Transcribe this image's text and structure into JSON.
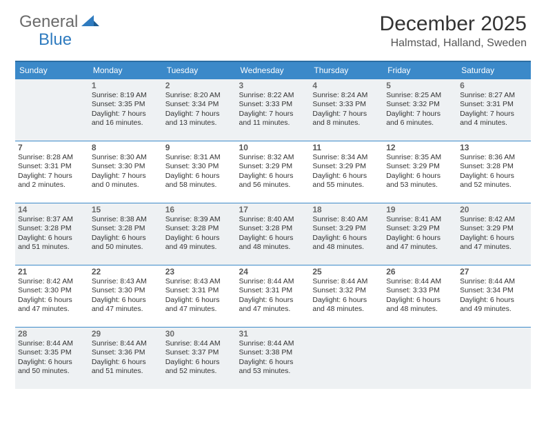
{
  "logo": {
    "part1": "General",
    "part2": "Blue"
  },
  "title": "December 2025",
  "location": "Halmstad, Halland, Sweden",
  "colors": {
    "header_bg": "#3b89c9",
    "header_border": "#2c6da3",
    "shaded_bg": "#eef1f3",
    "text": "#333333",
    "logo_gray": "#6a6a6a",
    "logo_blue": "#2f7bbf"
  },
  "weekdays": [
    "Sunday",
    "Monday",
    "Tuesday",
    "Wednesday",
    "Thursday",
    "Friday",
    "Saturday"
  ],
  "weeks": [
    [
      {
        "empty": true
      },
      {
        "day": "1",
        "sunrise": "Sunrise: 8:19 AM",
        "sunset": "Sunset: 3:35 PM",
        "daylight": "Daylight: 7 hours and 16 minutes."
      },
      {
        "day": "2",
        "sunrise": "Sunrise: 8:20 AM",
        "sunset": "Sunset: 3:34 PM",
        "daylight": "Daylight: 7 hours and 13 minutes."
      },
      {
        "day": "3",
        "sunrise": "Sunrise: 8:22 AM",
        "sunset": "Sunset: 3:33 PM",
        "daylight": "Daylight: 7 hours and 11 minutes."
      },
      {
        "day": "4",
        "sunrise": "Sunrise: 8:24 AM",
        "sunset": "Sunset: 3:33 PM",
        "daylight": "Daylight: 7 hours and 8 minutes."
      },
      {
        "day": "5",
        "sunrise": "Sunrise: 8:25 AM",
        "sunset": "Sunset: 3:32 PM",
        "daylight": "Daylight: 7 hours and 6 minutes."
      },
      {
        "day": "6",
        "sunrise": "Sunrise: 8:27 AM",
        "sunset": "Sunset: 3:31 PM",
        "daylight": "Daylight: 7 hours and 4 minutes."
      }
    ],
    [
      {
        "day": "7",
        "sunrise": "Sunrise: 8:28 AM",
        "sunset": "Sunset: 3:31 PM",
        "daylight": "Daylight: 7 hours and 2 minutes."
      },
      {
        "day": "8",
        "sunrise": "Sunrise: 8:30 AM",
        "sunset": "Sunset: 3:30 PM",
        "daylight": "Daylight: 7 hours and 0 minutes."
      },
      {
        "day": "9",
        "sunrise": "Sunrise: 8:31 AM",
        "sunset": "Sunset: 3:30 PM",
        "daylight": "Daylight: 6 hours and 58 minutes."
      },
      {
        "day": "10",
        "sunrise": "Sunrise: 8:32 AM",
        "sunset": "Sunset: 3:29 PM",
        "daylight": "Daylight: 6 hours and 56 minutes."
      },
      {
        "day": "11",
        "sunrise": "Sunrise: 8:34 AM",
        "sunset": "Sunset: 3:29 PM",
        "daylight": "Daylight: 6 hours and 55 minutes."
      },
      {
        "day": "12",
        "sunrise": "Sunrise: 8:35 AM",
        "sunset": "Sunset: 3:29 PM",
        "daylight": "Daylight: 6 hours and 53 minutes."
      },
      {
        "day": "13",
        "sunrise": "Sunrise: 8:36 AM",
        "sunset": "Sunset: 3:28 PM",
        "daylight": "Daylight: 6 hours and 52 minutes."
      }
    ],
    [
      {
        "day": "14",
        "sunrise": "Sunrise: 8:37 AM",
        "sunset": "Sunset: 3:28 PM",
        "daylight": "Daylight: 6 hours and 51 minutes."
      },
      {
        "day": "15",
        "sunrise": "Sunrise: 8:38 AM",
        "sunset": "Sunset: 3:28 PM",
        "daylight": "Daylight: 6 hours and 50 minutes."
      },
      {
        "day": "16",
        "sunrise": "Sunrise: 8:39 AM",
        "sunset": "Sunset: 3:28 PM",
        "daylight": "Daylight: 6 hours and 49 minutes."
      },
      {
        "day": "17",
        "sunrise": "Sunrise: 8:40 AM",
        "sunset": "Sunset: 3:28 PM",
        "daylight": "Daylight: 6 hours and 48 minutes."
      },
      {
        "day": "18",
        "sunrise": "Sunrise: 8:40 AM",
        "sunset": "Sunset: 3:29 PM",
        "daylight": "Daylight: 6 hours and 48 minutes."
      },
      {
        "day": "19",
        "sunrise": "Sunrise: 8:41 AM",
        "sunset": "Sunset: 3:29 PM",
        "daylight": "Daylight: 6 hours and 47 minutes."
      },
      {
        "day": "20",
        "sunrise": "Sunrise: 8:42 AM",
        "sunset": "Sunset: 3:29 PM",
        "daylight": "Daylight: 6 hours and 47 minutes."
      }
    ],
    [
      {
        "day": "21",
        "sunrise": "Sunrise: 8:42 AM",
        "sunset": "Sunset: 3:30 PM",
        "daylight": "Daylight: 6 hours and 47 minutes."
      },
      {
        "day": "22",
        "sunrise": "Sunrise: 8:43 AM",
        "sunset": "Sunset: 3:30 PM",
        "daylight": "Daylight: 6 hours and 47 minutes."
      },
      {
        "day": "23",
        "sunrise": "Sunrise: 8:43 AM",
        "sunset": "Sunset: 3:31 PM",
        "daylight": "Daylight: 6 hours and 47 minutes."
      },
      {
        "day": "24",
        "sunrise": "Sunrise: 8:44 AM",
        "sunset": "Sunset: 3:31 PM",
        "daylight": "Daylight: 6 hours and 47 minutes."
      },
      {
        "day": "25",
        "sunrise": "Sunrise: 8:44 AM",
        "sunset": "Sunset: 3:32 PM",
        "daylight": "Daylight: 6 hours and 48 minutes."
      },
      {
        "day": "26",
        "sunrise": "Sunrise: 8:44 AM",
        "sunset": "Sunset: 3:33 PM",
        "daylight": "Daylight: 6 hours and 48 minutes."
      },
      {
        "day": "27",
        "sunrise": "Sunrise: 8:44 AM",
        "sunset": "Sunset: 3:34 PM",
        "daylight": "Daylight: 6 hours and 49 minutes."
      }
    ],
    [
      {
        "day": "28",
        "sunrise": "Sunrise: 8:44 AM",
        "sunset": "Sunset: 3:35 PM",
        "daylight": "Daylight: 6 hours and 50 minutes."
      },
      {
        "day": "29",
        "sunrise": "Sunrise: 8:44 AM",
        "sunset": "Sunset: 3:36 PM",
        "daylight": "Daylight: 6 hours and 51 minutes."
      },
      {
        "day": "30",
        "sunrise": "Sunrise: 8:44 AM",
        "sunset": "Sunset: 3:37 PM",
        "daylight": "Daylight: 6 hours and 52 minutes."
      },
      {
        "day": "31",
        "sunrise": "Sunrise: 8:44 AM",
        "sunset": "Sunset: 3:38 PM",
        "daylight": "Daylight: 6 hours and 53 minutes."
      },
      {
        "empty": true
      },
      {
        "empty": true
      },
      {
        "empty": true
      }
    ]
  ]
}
